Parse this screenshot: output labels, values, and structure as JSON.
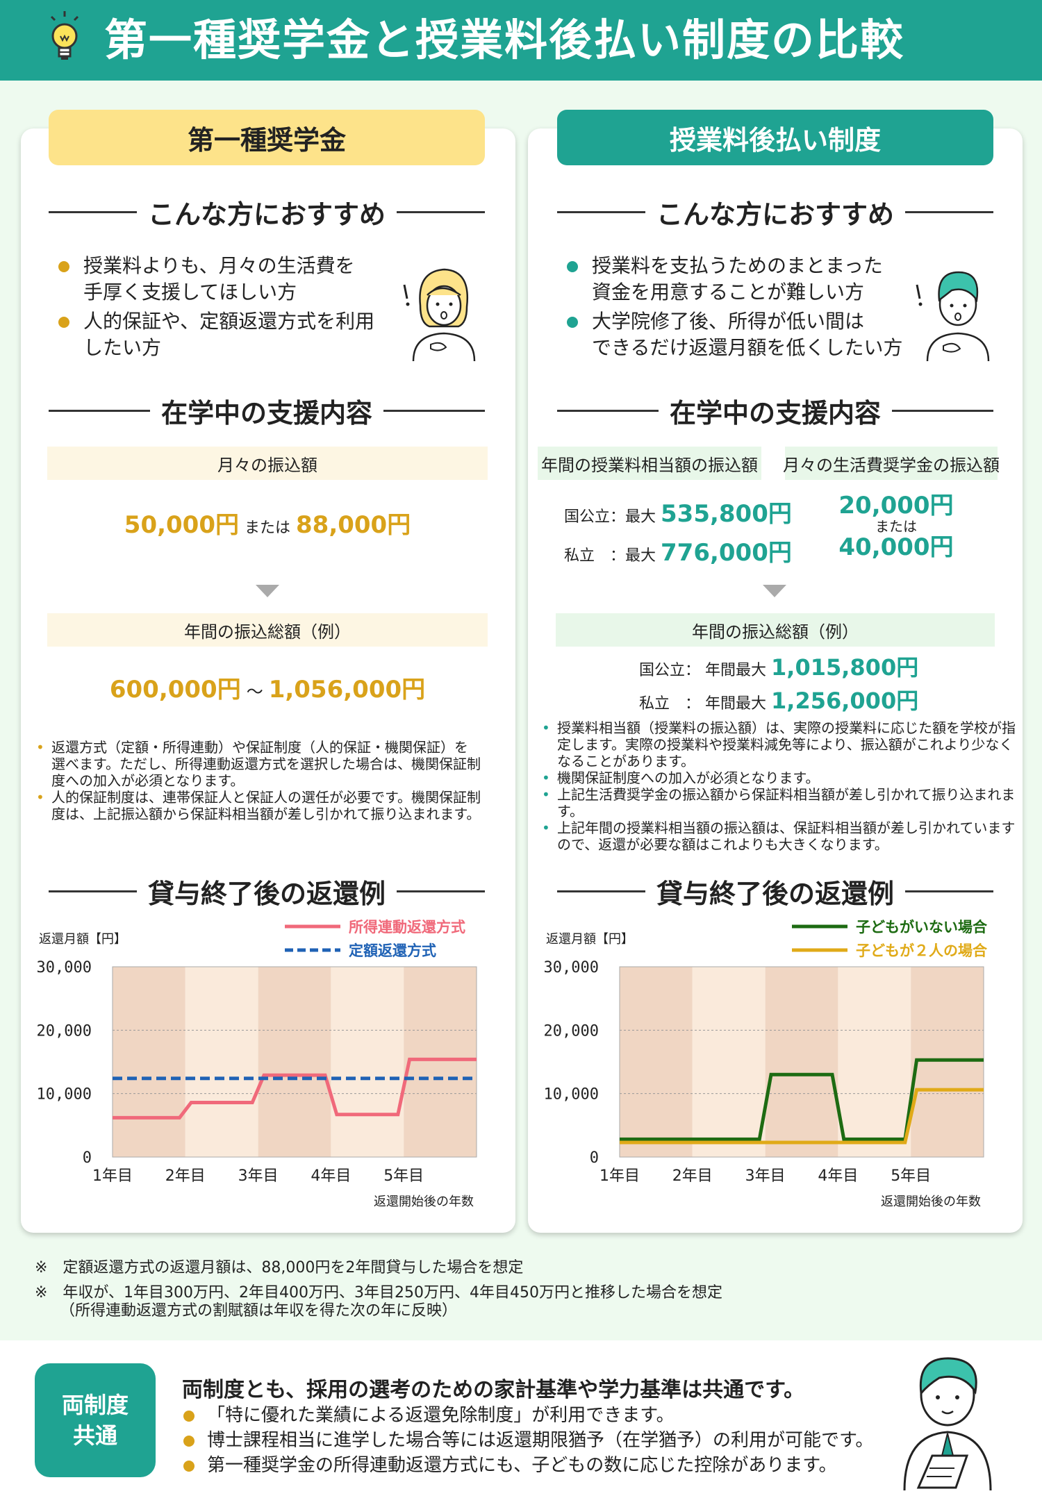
{
  "title": "第一種奨学金と授業料後払い制度の比較",
  "left": {
    "tab": "第一種奨学金",
    "sec_recommend": "こんな方におすすめ",
    "bullets": [
      "授業料よりも、月々の生活費を\n手厚く支援してほしい方",
      "人的保証や、定額返還方式を利用\nしたい方"
    ],
    "sec_support": "在学中の支援内容",
    "monthly_label": "月々の振込額",
    "monthly_a": "50,000円",
    "monthly_or": "または",
    "monthly_b": "88,000円",
    "annual_label": "年間の振込総額（例）",
    "annual_a": "600,000円",
    "annual_sep": "～",
    "annual_b": "1,056,000円",
    "notes": [
      "返還方式（定額・所得連動）や保証制度（人的保証・機関保証）を選べます。ただし、所得連動返還方式を選択した場合は、機関保証制度への加入が必須となります。",
      "人的保証制度は、連帯保証人と保証人の選任が必要です。機関保証制度は、上記振込額から保証料相当額が差し引かれて振り込まれます。"
    ],
    "sec_repay": "貸与終了後の返還例"
  },
  "right": {
    "tab": "授業料後払い制度",
    "sec_recommend": "こんな方におすすめ",
    "bullets": [
      "授業料を支払うためのまとまった\n資金を用意することが難しい方",
      "大学院修了後、所得が低い間は\nできるだけ返還月額を低くしたい方"
    ],
    "sec_support": "在学中の支援内容",
    "label_tuition": "年間の授業料相当額の振込額",
    "label_living": "月々の生活費奨学金の振込額",
    "national_label": "国公立：最大",
    "national_value": "535,800円",
    "private_label": "私立　：最大",
    "private_value": "776,000円",
    "living_a": "20,000円",
    "living_or": "または",
    "living_b": "40,000円",
    "annual_label": "年間の振込総額（例）",
    "annual_national_label": "国公立：",
    "annual_national_pre": "年間最大",
    "annual_national_value": "1,015,800円",
    "annual_private_label": "私立　：",
    "annual_private_pre": "年間最大",
    "annual_private_value": "1,256,000円",
    "notes": [
      "授業料相当額（授業料の振込額）は、実際の授業料に応じた額を学校が指定します。実際の授業料や授業料減免等により、振込額がこれより少なくなることがあります。",
      "機関保証制度への加入が必須となります。",
      "上記生活費奨学金の振込額から保証料相当額が差し引かれて振り込まれます。",
      "上記年間の授業料相当額の振込額は、保証料相当額が差し引かれていますので、返還が必要な額はこれよりも大きくなります。"
    ],
    "sec_repay": "貸与終了後の返還例"
  },
  "chart_data": [
    {
      "type": "line",
      "ylabel": "返還月額【円】",
      "xlabel": "返還開始後の年数",
      "ylim": [
        0,
        30000
      ],
      "yticks": [
        "30,000",
        "20,000",
        "10,000",
        "0"
      ],
      "categories": [
        "1年目",
        "2年目",
        "3年目",
        "4年目",
        "5年目"
      ],
      "series": [
        {
          "name": "所得連動返還方式",
          "color": "#f0697a",
          "dashed": false,
          "values": [
            6200,
            8600,
            12900,
            6700,
            15400
          ]
        },
        {
          "name": "定額返還方式",
          "color": "#1f62b5",
          "dashed": true,
          "values": [
            12400,
            12400,
            12400,
            12400,
            12400
          ]
        }
      ]
    },
    {
      "type": "line",
      "ylabel": "返還月額【円】",
      "xlabel": "返還開始後の年数",
      "ylim": [
        0,
        30000
      ],
      "yticks": [
        "30,000",
        "20,000",
        "10,000",
        "0"
      ],
      "categories": [
        "1年目",
        "2年目",
        "3年目",
        "4年目",
        "5年目"
      ],
      "series": [
        {
          "name": "子どもがいない場合",
          "color": "#1d6b12",
          "dashed": false,
          "values": [
            2800,
            2800,
            13000,
            2800,
            15300
          ]
        },
        {
          "name": "子どもが２人の場合",
          "color": "#e0aa18",
          "dashed": false,
          "values": [
            2300,
            2300,
            2300,
            2300,
            10600
          ]
        }
      ]
    }
  ],
  "footnotes": [
    "※　定額返還方式の返還月額は、88,000円を2年間貸与した場合を想定",
    "※　年収が、1年目300万円、2年目400万円、3年目250万円、4年目450万円と推移した場合を想定",
    "（所得連動返還方式の割賦額は年収を得た次の年に反映）"
  ],
  "common": {
    "badge": [
      "両制度",
      "共通"
    ],
    "headline": "両制度とも、採用の選考のための家計基準や学力基準は共通です。",
    "bullets": [
      "「特に優れた業績による返還免除制度」が利用できます。",
      "博士課程相当に進学した場合等には返還期限猶予（在学猶予）の利用が可能です。",
      "第一種奨学金の所得連動返還方式にも、子どもの数に応じた控除があります。"
    ]
  },
  "colors": {
    "teal": "#1fa392",
    "gold": "#d9a21a",
    "yellow": "#fde38a",
    "pink": "#f0697a",
    "blue": "#1f62b5",
    "green": "#1d6b12"
  }
}
